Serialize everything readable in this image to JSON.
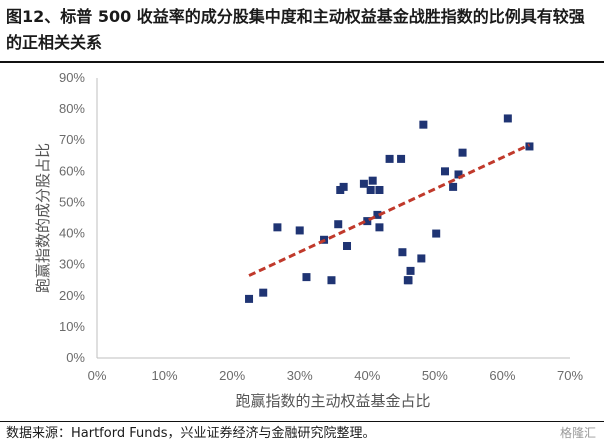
{
  "title": "图12、标普 500 收益率的成分股集中度和主动权益基金战胜指数的比例具有较强的正相关关系",
  "source": "数据来源：Hartford Funds，兴业证券经济与金融研究院整理。",
  "watermark": "格隆汇",
  "colors": {
    "point": "#1f3473",
    "trendline": "#c0392b",
    "axis": "#bfbfbf"
  },
  "chart_data": {
    "type": "scatter",
    "xlabel": "跑赢指数的主动权益基金占比",
    "ylabel": "跑赢指数的成分股占比",
    "xlim": [
      0,
      0.7
    ],
    "ylim": [
      0,
      0.9
    ],
    "x_ticks": [
      "0%",
      "10%",
      "20%",
      "30%",
      "40%",
      "50%",
      "60%",
      "70%"
    ],
    "y_ticks": [
      "0%",
      "10%",
      "20%",
      "30%",
      "40%",
      "50%",
      "60%",
      "70%",
      "80%",
      "90%"
    ],
    "grid": false,
    "points": [
      [
        0.225,
        0.19
      ],
      [
        0.246,
        0.21
      ],
      [
        0.267,
        0.42
      ],
      [
        0.3,
        0.41
      ],
      [
        0.31,
        0.26
      ],
      [
        0.336,
        0.38
      ],
      [
        0.347,
        0.25
      ],
      [
        0.357,
        0.43
      ],
      [
        0.36,
        0.54
      ],
      [
        0.365,
        0.55
      ],
      [
        0.37,
        0.36
      ],
      [
        0.395,
        0.56
      ],
      [
        0.4,
        0.44
      ],
      [
        0.405,
        0.54
      ],
      [
        0.408,
        0.57
      ],
      [
        0.415,
        0.46
      ],
      [
        0.418,
        0.54
      ],
      [
        0.418,
        0.42
      ],
      [
        0.433,
        0.64
      ],
      [
        0.45,
        0.64
      ],
      [
        0.452,
        0.34
      ],
      [
        0.46,
        0.25
      ],
      [
        0.461,
        0.25
      ],
      [
        0.464,
        0.28
      ],
      [
        0.48,
        0.32
      ],
      [
        0.483,
        0.75
      ],
      [
        0.502,
        0.4
      ],
      [
        0.515,
        0.6
      ],
      [
        0.527,
        0.55
      ],
      [
        0.535,
        0.59
      ],
      [
        0.541,
        0.66
      ],
      [
        0.608,
        0.77
      ],
      [
        0.64,
        0.68
      ]
    ],
    "trendline": {
      "style": "dashed",
      "from": [
        0.225,
        0.265
      ],
      "to": [
        0.64,
        0.685
      ]
    }
  }
}
